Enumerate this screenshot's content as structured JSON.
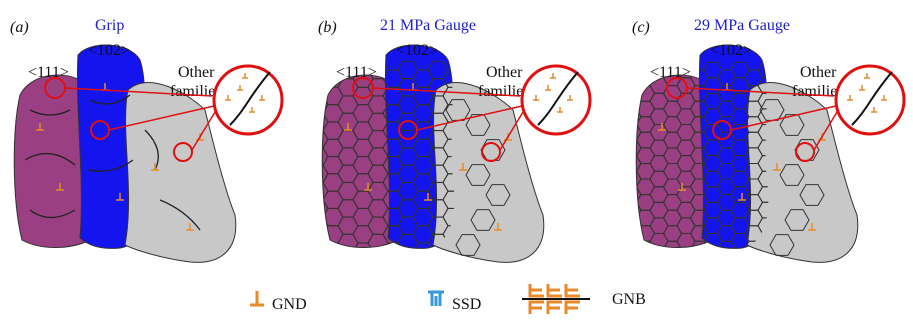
{
  "panels": [
    {
      "label": "(a)",
      "title": "Grip",
      "family_111": "<111>",
      "family_102": "<102>",
      "other_families": [
        "Other",
        "families"
      ]
    },
    {
      "label": "(b)",
      "title": "21 MPa Gauge",
      "family_111": "<111>",
      "family_102": "<102>",
      "other_families": [
        "Other",
        "families"
      ]
    },
    {
      "label": "(c)",
      "title": "29 MPa Gauge",
      "family_111": "<111>",
      "family_102": "<102>",
      "other_families": [
        "Other",
        "families"
      ]
    }
  ],
  "legend": [
    {
      "label": "GND"
    },
    {
      "label": "SSD"
    },
    {
      "label": "GNB"
    }
  ]
}
